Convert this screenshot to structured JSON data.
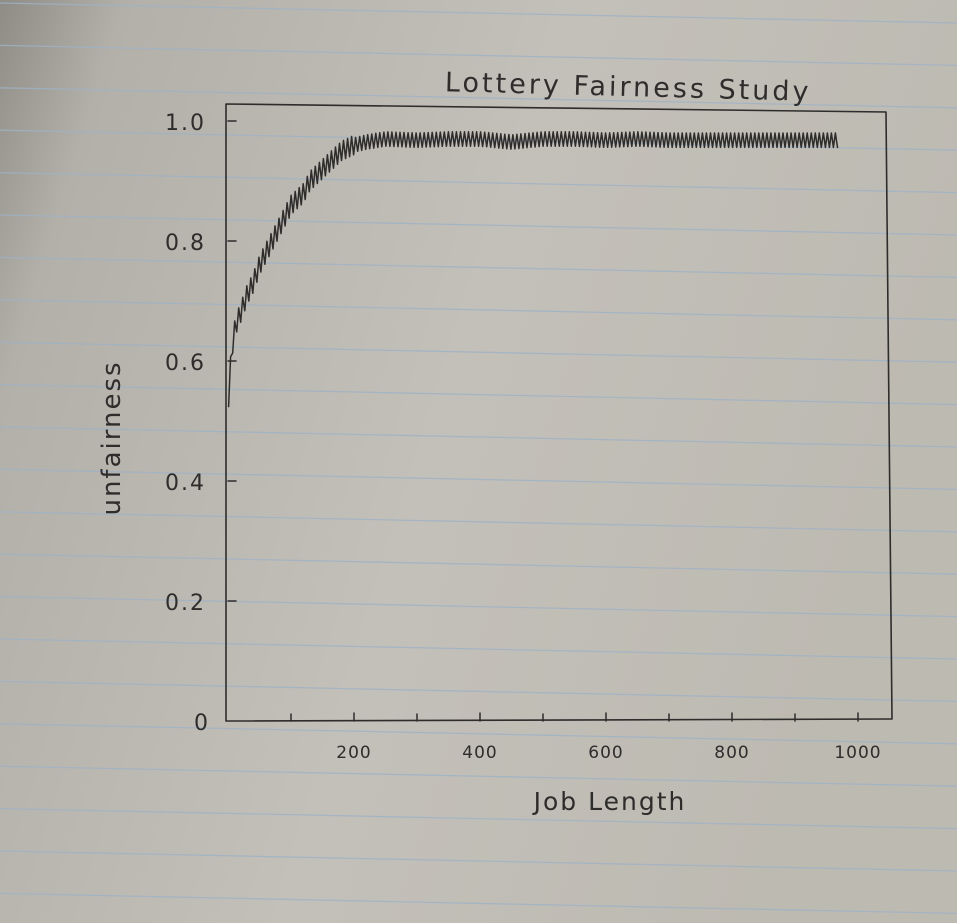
{
  "chart_data": {
    "type": "line",
    "title": "Lottery Fairness Study",
    "xlabel": "Job Length",
    "ylabel": "unfairness",
    "xlim": [
      0,
      1000
    ],
    "ylim": [
      0,
      1.0
    ],
    "x_ticks": [
      {
        "value": 200,
        "label": "200"
      },
      {
        "value": 400,
        "label": "400"
      },
      {
        "value": 600,
        "label": "600"
      },
      {
        "value": 800,
        "label": "800"
      },
      {
        "value": 1000,
        "label": "1000"
      }
    ],
    "x_minor_ticks": [
      100,
      300,
      500,
      700,
      900
    ],
    "y_ticks": [
      {
        "value": 0,
        "label": "0"
      },
      {
        "value": 0.2,
        "label": "0.2"
      },
      {
        "value": 0.4,
        "label": "0.4"
      },
      {
        "value": 0.6,
        "label": "0.6"
      },
      {
        "value": 0.8,
        "label": "0.8"
      },
      {
        "value": 1.0,
        "label": "1.0"
      }
    ],
    "grid": false,
    "series": [
      {
        "points": [
          [
            1,
            0.54
          ],
          [
            6,
            0.62
          ],
          [
            12,
            0.66
          ],
          [
            20,
            0.68
          ],
          [
            30,
            0.71
          ],
          [
            40,
            0.73
          ],
          [
            50,
            0.76
          ],
          [
            60,
            0.78
          ],
          [
            70,
            0.8
          ],
          [
            80,
            0.82
          ],
          [
            90,
            0.84
          ],
          [
            100,
            0.86
          ],
          [
            110,
            0.87
          ],
          [
            120,
            0.88
          ],
          [
            130,
            0.9
          ],
          [
            140,
            0.91
          ],
          [
            150,
            0.92
          ],
          [
            160,
            0.93
          ],
          [
            170,
            0.94
          ],
          [
            180,
            0.95
          ],
          [
            190,
            0.955
          ],
          [
            200,
            0.96
          ],
          [
            220,
            0.965
          ],
          [
            250,
            0.97
          ],
          [
            300,
            0.968
          ],
          [
            350,
            0.97
          ],
          [
            400,
            0.97
          ],
          [
            450,
            0.965
          ],
          [
            500,
            0.97
          ],
          [
            550,
            0.97
          ],
          [
            600,
            0.968
          ],
          [
            650,
            0.97
          ],
          [
            700,
            0.968
          ],
          [
            750,
            0.968
          ],
          [
            800,
            0.968
          ],
          [
            850,
            0.968
          ],
          [
            900,
            0.968
          ],
          [
            950,
            0.968
          ],
          [
            970,
            0.968
          ]
        ]
      }
    ]
  }
}
